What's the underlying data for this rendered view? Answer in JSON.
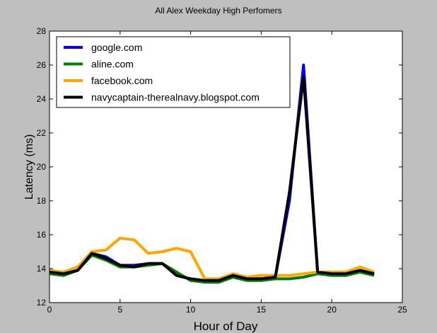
{
  "chart_data": {
    "type": "line",
    "title": "All Alex Weekday High Perfomers",
    "xlabel": "Hour of Day",
    "ylabel": "Latency (ms)",
    "xlim": [
      0,
      25
    ],
    "ylim": [
      12,
      28
    ],
    "xticks": [
      0,
      5,
      10,
      15,
      20,
      25
    ],
    "yticks": [
      12,
      14,
      16,
      18,
      20,
      22,
      24,
      26,
      28
    ],
    "grid": false,
    "legend": "top-left",
    "x": [
      0,
      1,
      2,
      3,
      4,
      5,
      6,
      7,
      8,
      9,
      10,
      11,
      12,
      13,
      14,
      15,
      16,
      17,
      18,
      19,
      20,
      21,
      22,
      23
    ],
    "series": [
      {
        "name": "google.com",
        "color": "#0000ff",
        "values": [
          13.8,
          13.7,
          13.9,
          14.9,
          14.7,
          14.2,
          14.2,
          14.3,
          14.3,
          13.6,
          13.4,
          13.3,
          13.3,
          13.6,
          13.4,
          13.4,
          13.5,
          18.0,
          26.0,
          13.7,
          13.7,
          13.7,
          13.9,
          13.7
        ]
      },
      {
        "name": "aline.com",
        "color": "#008000",
        "values": [
          13.7,
          13.6,
          13.9,
          14.8,
          14.5,
          14.1,
          14.1,
          14.2,
          14.3,
          13.8,
          13.3,
          13.2,
          13.2,
          13.5,
          13.3,
          13.3,
          13.4,
          13.4,
          13.5,
          13.7,
          13.6,
          13.6,
          13.8,
          13.6
        ]
      },
      {
        "name": "facebook.com",
        "color": "#ffa500",
        "values": [
          13.9,
          13.8,
          14.1,
          15.0,
          15.1,
          15.8,
          15.7,
          14.9,
          15.0,
          15.2,
          15.0,
          13.4,
          13.4,
          13.7,
          13.5,
          13.6,
          13.6,
          13.6,
          13.7,
          13.8,
          13.8,
          13.8,
          14.1,
          13.8
        ]
      },
      {
        "name": "navycaptain-therealnavy.blogspot.com",
        "color": "#000000",
        "values": [
          13.8,
          13.7,
          13.9,
          14.9,
          14.6,
          14.2,
          14.1,
          14.3,
          14.3,
          13.6,
          13.4,
          13.3,
          13.3,
          13.6,
          13.4,
          13.4,
          13.5,
          18.5,
          25.3,
          13.8,
          13.7,
          13.7,
          13.9,
          13.7
        ]
      }
    ]
  }
}
